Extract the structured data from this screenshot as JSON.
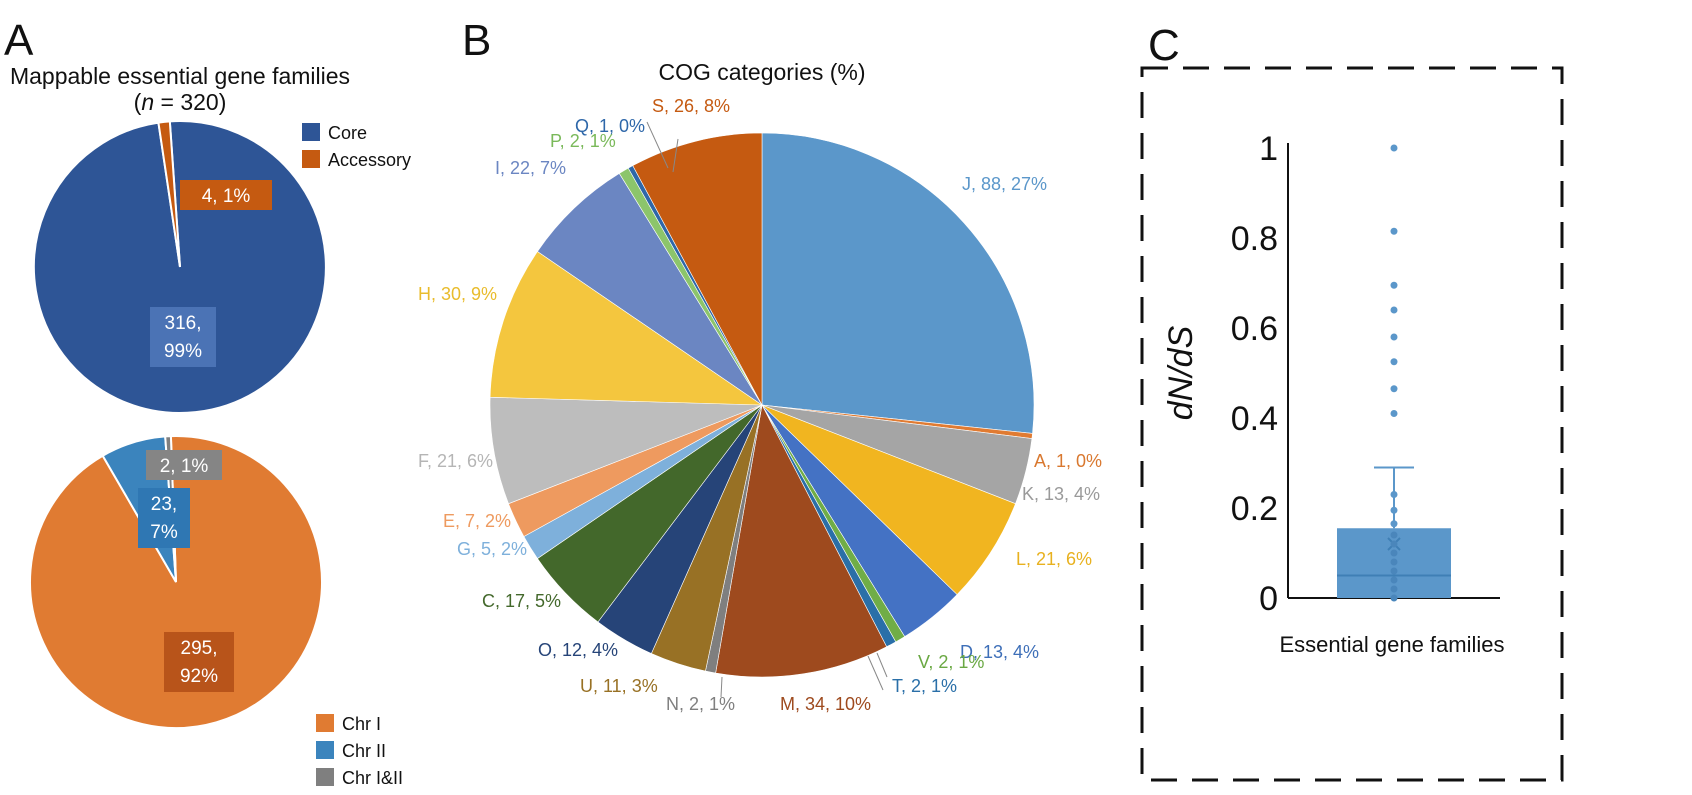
{
  "panels": {
    "a": {
      "letter": "A"
    },
    "b": {
      "letter": "B"
    },
    "c": {
      "letter": "C"
    }
  },
  "chart_data": [
    {
      "id": "pieA1",
      "type": "pie",
      "title": "Mappable essential gene families",
      "subtitle_prefix": "(",
      "subtitle_n": "n",
      "subtitle_value": " = 320)",
      "slices": [
        {
          "name": "Core",
          "value": 316,
          "label_lines": [
            "316,",
            "99%"
          ],
          "color": "#2e5596"
        },
        {
          "name": "Accessory",
          "value": 4,
          "label_lines": [
            "4, 1%"
          ],
          "color": "#c55a11"
        }
      ]
    },
    {
      "id": "pieA2",
      "type": "pie",
      "slices": [
        {
          "name": "Chr I",
          "value": 295,
          "label_lines": [
            "295,",
            "92%"
          ],
          "color": "#e07b32"
        },
        {
          "name": "Chr II",
          "value": 23,
          "label_lines": [
            "23,",
            "7%"
          ],
          "color": "#3b84bd"
        },
        {
          "name": "Chr I&II",
          "value": 2,
          "label_lines": [
            "2, 1%"
          ],
          "color": "#7f7f7f"
        }
      ]
    },
    {
      "id": "pieB",
      "type": "pie",
      "title": "COG categories (%)",
      "slices": [
        {
          "name": "J",
          "value": 88,
          "label": "J, 88, 27%",
          "color": "#5b97ca",
          "text_color": "#5b97ca"
        },
        {
          "name": "A",
          "value": 1,
          "label": "A, 1, 0%",
          "color": "#e07b32",
          "text_color": "#d9782f"
        },
        {
          "name": "K",
          "value": 13,
          "label": "K, 13, 4%",
          "color": "#a5a5a5",
          "text_color": "#9a9a9a"
        },
        {
          "name": "L",
          "value": 21,
          "label": "L, 21, 6%",
          "color": "#f1b520",
          "text_color": "#e8b11f"
        },
        {
          "name": "D",
          "value": 13,
          "label": "D, 13, 4%",
          "color": "#4472c4",
          "text_color": "#3e6fb8"
        },
        {
          "name": "V",
          "value": 2,
          "label": "V, 2, 1%",
          "color": "#70ad47",
          "text_color": "#6aa843"
        },
        {
          "name": "T",
          "value": 2,
          "label": "T, 2, 1%",
          "color": "#2a6fa8",
          "text_color": "#2a6fa8"
        },
        {
          "name": "M",
          "value": 34,
          "label": "M, 34, 10%",
          "color": "#9e4a1e",
          "text_color": "#9e4a1e"
        },
        {
          "name": "N",
          "value": 2,
          "label": "N, 2, 1%",
          "color": "#7f7f7f",
          "text_color": "#7f7f7f"
        },
        {
          "name": "U",
          "value": 11,
          "label": "U, 11, 3%",
          "color": "#987125",
          "text_color": "#987125"
        },
        {
          "name": "O",
          "value": 12,
          "label": "O, 12, 4%",
          "color": "#264478",
          "text_color": "#264478"
        },
        {
          "name": "C",
          "value": 17,
          "label": "C, 17, 5%",
          "color": "#43682b",
          "text_color": "#43682b"
        },
        {
          "name": "G",
          "value": 5,
          "label": "G, 5, 2%",
          "color": "#7eb0db",
          "text_color": "#7eb0db"
        },
        {
          "name": "E",
          "value": 7,
          "label": "E, 7, 2%",
          "color": "#ee9a5f",
          "text_color": "#ee9a5f"
        },
        {
          "name": "F",
          "value": 21,
          "label": "F, 21, 6%",
          "color": "#bdbdbd",
          "text_color": "#b5b5b5"
        },
        {
          "name": "H",
          "value": 30,
          "label": "H, 30, 9%",
          "color": "#f4c63e",
          "text_color": "#e9bc2c"
        },
        {
          "name": "I",
          "value": 22,
          "label": "I, 22, 7%",
          "color": "#6b86c2",
          "text_color": "#6b86c2"
        },
        {
          "name": "P",
          "value": 2,
          "label": "P, 2, 1%",
          "color": "#8cc56b",
          "text_color": "#7ab95a"
        },
        {
          "name": "Q",
          "value": 1,
          "label": "Q, 1, 0%",
          "color": "#2e67a9",
          "text_color": "#2e67a9"
        },
        {
          "name": "S",
          "value": 26,
          "label": "S, 26, 8%",
          "color": "#c55a11",
          "text_color": "#c55a11"
        }
      ]
    },
    {
      "id": "boxC",
      "type": "box",
      "xlabel": "Essential gene families",
      "ylabel": "dN/dS",
      "ylabel_parts": [
        "d",
        "N",
        "/",
        "d",
        "S"
      ],
      "ylim": [
        0,
        1
      ],
      "yticks": [
        0,
        0.2,
        0.4,
        0.6,
        0.8,
        1
      ],
      "ytick_labels": [
        "0",
        "0.2",
        "0.4",
        "0.6",
        "0.8",
        "1"
      ],
      "box": {
        "min": 0,
        "q1": 0,
        "median": 0.05,
        "mean": 0.12,
        "q3": 0.155,
        "whisker_high": 0.29
      },
      "points": [
        1.0,
        0.815,
        0.695,
        0.64,
        0.58,
        0.525,
        0.465,
        0.41,
        0.23,
        0.195,
        0.165,
        0.14,
        0.12,
        0.1,
        0.08,
        0.06,
        0.04,
        0.02,
        0.0
      ],
      "color": "#5b97ca"
    }
  ]
}
